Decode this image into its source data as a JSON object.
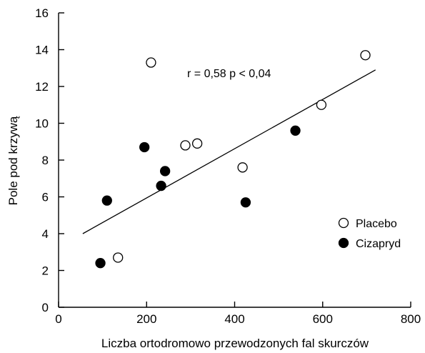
{
  "chart_data": {
    "type": "scatter",
    "xlabel": "Liczba ortodromowo przewodzonych fal skurczów",
    "ylabel": "Pole pod krzywą",
    "xlim": [
      0,
      800
    ],
    "ylim": [
      0,
      16
    ],
    "xticks": [
      0,
      200,
      400,
      600,
      800
    ],
    "yticks": [
      0,
      2,
      4,
      6,
      8,
      10,
      12,
      14,
      16
    ],
    "grid": false,
    "legend_position": "right",
    "annotation": "r = 0,58  p < 0,04",
    "series": [
      {
        "name": "Placebo",
        "marker": "open-circle",
        "points": [
          {
            "x": 135,
            "y": 2.7
          },
          {
            "x": 210,
            "y": 13.3
          },
          {
            "x": 288,
            "y": 8.8
          },
          {
            "x": 315,
            "y": 8.9
          },
          {
            "x": 418,
            "y": 7.6
          },
          {
            "x": 597,
            "y": 11.0
          },
          {
            "x": 697,
            "y": 13.7
          }
        ]
      },
      {
        "name": "Cizapryd",
        "marker": "filled-circle",
        "points": [
          {
            "x": 95,
            "y": 2.4
          },
          {
            "x": 110,
            "y": 5.8
          },
          {
            "x": 195,
            "y": 8.7
          },
          {
            "x": 233,
            "y": 6.6
          },
          {
            "x": 242,
            "y": 7.4
          },
          {
            "x": 425,
            "y": 5.7
          },
          {
            "x": 538,
            "y": 9.6
          }
        ]
      }
    ],
    "trendline": {
      "x": [
        55,
        720
      ],
      "y": [
        4.0,
        12.9
      ]
    }
  }
}
